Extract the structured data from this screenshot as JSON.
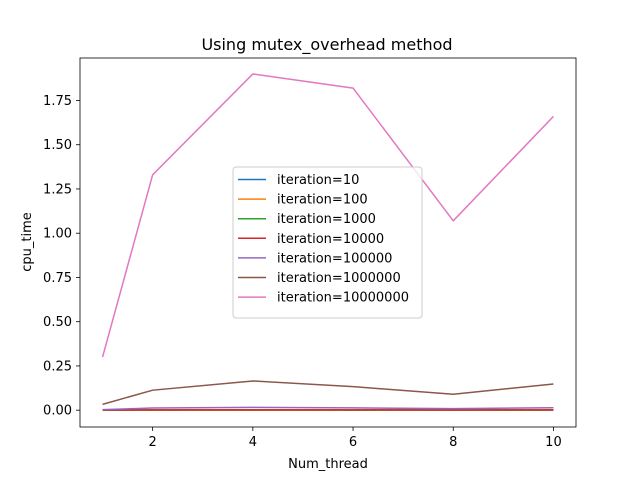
{
  "chart_data": {
    "type": "line",
    "title": "Using mutex_overhead method",
    "xlabel": "Num_thread",
    "ylabel": "cpu_time",
    "xlim": [
      0.55,
      10.45
    ],
    "ylim": [
      -0.095,
      1.99
    ],
    "xticks": [
      2,
      4,
      6,
      8,
      10
    ],
    "xtick_labels": [
      "2",
      "4",
      "6",
      "8",
      "10"
    ],
    "yticks": [
      0.0,
      0.25,
      0.5,
      0.75,
      1.0,
      1.25,
      1.5,
      1.75
    ],
    "ytick_labels": [
      "0.00",
      "0.25",
      "0.50",
      "0.75",
      "1.00",
      "1.25",
      "1.50",
      "1.75"
    ],
    "grid": false,
    "legend_position": "center",
    "x": [
      1,
      2,
      4,
      6,
      8,
      10
    ],
    "series": [
      {
        "name": "iteration=10",
        "color": "#1f77b4",
        "values": [
          0.0002,
          0.0004,
          0.0005,
          0.0004,
          0.0004,
          0.0005
        ]
      },
      {
        "name": "iteration=100",
        "color": "#ff7f0e",
        "values": [
          0.0003,
          0.0005,
          0.0006,
          0.0005,
          0.0005,
          0.0006
        ]
      },
      {
        "name": "iteration=1000",
        "color": "#2ca02c",
        "values": [
          0.0005,
          0.001,
          0.0015,
          0.0013,
          0.0011,
          0.0014
        ]
      },
      {
        "name": "iteration=10000",
        "color": "#d62728",
        "values": [
          0.0008,
          0.002,
          0.002,
          0.0018,
          0.0012,
          0.0018
        ]
      },
      {
        "name": "iteration=100000",
        "color": "#9467bd",
        "values": [
          0.003,
          0.012,
          0.016,
          0.013,
          0.009,
          0.014
        ]
      },
      {
        "name": "iteration=1000000",
        "color": "#8c564b",
        "values": [
          0.033,
          0.113,
          0.165,
          0.133,
          0.09,
          0.148
        ]
      },
      {
        "name": "iteration=10000000",
        "color": "#e377c2",
        "values": [
          0.3,
          1.33,
          1.9,
          1.82,
          1.07,
          1.66
        ]
      }
    ]
  }
}
